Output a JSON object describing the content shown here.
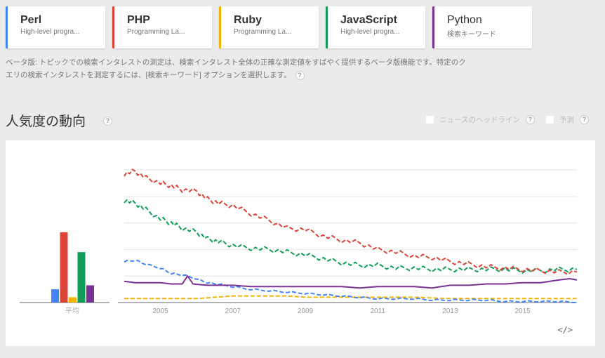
{
  "terms": [
    {
      "name": "Perl",
      "subtitle": "High-level progra...",
      "color": "#4285f4",
      "bold": true
    },
    {
      "name": "PHP",
      "subtitle": "Programming La...",
      "color": "#db4437",
      "bold": true
    },
    {
      "name": "Ruby",
      "subtitle": "Programming La...",
      "color": "#f4b400",
      "bold": true
    },
    {
      "name": "JavaScript",
      "subtitle": "High-level progra...",
      "color": "#0f9d58",
      "bold": true
    },
    {
      "name": "Python",
      "subtitle": "検索キーワード",
      "color": "#7b3294",
      "bold": false
    }
  ],
  "notice": {
    "line1": "ベータ版: トピックでの検索インタレストの測定は、検索インタレスト全体の正確な測定値をすばやく提供するベータ版機能です。特定のク",
    "line2": "エリの検索インタレストを測定するには、[検索キーワード] オプションを選択します。"
  },
  "section": {
    "title": "人気度の動向",
    "options": [
      {
        "label": "ニュースのヘッドライン",
        "checked": false
      },
      {
        "label": "予測",
        "checked": false
      }
    ]
  },
  "help_glyph": "?",
  "embed_label": "</>",
  "chart_data": {
    "type": "line",
    "title": "人気度の動向",
    "xlabel": "",
    "ylabel": "",
    "ylim": [
      0,
      100
    ],
    "grid": true,
    "x_ticks": [
      "2005",
      "2007",
      "2009",
      "2011",
      "2013",
      "2015"
    ],
    "x_range": [
      2004.0,
      2016.5
    ],
    "average_bar": {
      "label": "平均",
      "values": {
        "Perl": 10,
        "PHP": 53,
        "Ruby": 4,
        "JavaScript": 38,
        "Python": 13
      }
    },
    "series": [
      {
        "name": "Perl",
        "color": "#4285f4",
        "dashed": true,
        "x": [
          2004.0,
          2004.3,
          2004.6,
          2005.0,
          2005.3,
          2005.6,
          2006.0,
          2006.3,
          2006.6,
          2007.0,
          2007.5,
          2008.0,
          2008.5,
          2009.0,
          2009.5,
          2010.0,
          2010.5,
          2011.0,
          2011.5,
          2012.0,
          2012.5,
          2013.0,
          2013.5,
          2014.0,
          2014.5,
          2015.0,
          2015.5,
          2016.0,
          2016.5
        ],
        "values": [
          31,
          32,
          29,
          26,
          22,
          21,
          18,
          15,
          14,
          12,
          10,
          9,
          8,
          7,
          6,
          5,
          4,
          3,
          3,
          3,
          2,
          2,
          2,
          2,
          1,
          1,
          1,
          1,
          0
        ]
      },
      {
        "name": "PHP",
        "color": "#db4437",
        "dashed": true,
        "x": [
          2004.0,
          2004.3,
          2004.6,
          2005.0,
          2005.3,
          2005.6,
          2006.0,
          2006.3,
          2006.6,
          2007.0,
          2007.5,
          2008.0,
          2008.5,
          2009.0,
          2009.5,
          2010.0,
          2010.5,
          2011.0,
          2011.5,
          2012.0,
          2012.5,
          2013.0,
          2013.5,
          2014.0,
          2014.5,
          2015.0,
          2015.5,
          2016.0,
          2016.5
        ],
        "values": [
          97,
          99,
          94,
          90,
          88,
          85,
          84,
          78,
          75,
          73,
          67,
          62,
          56,
          55,
          50,
          47,
          45,
          40,
          38,
          35,
          34,
          31,
          29,
          27,
          26,
          25,
          24,
          23,
          23
        ]
      },
      {
        "name": "Ruby",
        "color": "#f4b400",
        "dashed": true,
        "x": [
          2004.0,
          2005.0,
          2006.0,
          2006.5,
          2007.0,
          2008.0,
          2008.5,
          2009.0,
          2010.0,
          2011.0,
          2012.0,
          2013.0,
          2014.0,
          2015.0,
          2016.0,
          2016.5
        ],
        "values": [
          3,
          3,
          3,
          4,
          5,
          5,
          5,
          4,
          4,
          4,
          4,
          3,
          3,
          3,
          3,
          3
        ]
      },
      {
        "name": "JavaScript",
        "color": "#0f9d58",
        "dashed": true,
        "x": [
          2004.0,
          2004.3,
          2004.6,
          2005.0,
          2005.3,
          2005.6,
          2006.0,
          2006.3,
          2006.6,
          2007.0,
          2007.5,
          2008.0,
          2008.5,
          2009.0,
          2009.5,
          2010.0,
          2010.5,
          2011.0,
          2011.5,
          2012.0,
          2012.5,
          2013.0,
          2013.5,
          2014.0,
          2014.5,
          2015.0,
          2015.5,
          2016.0,
          2016.5
        ],
        "values": [
          77,
          75,
          70,
          63,
          60,
          56,
          53,
          48,
          46,
          43,
          41,
          40,
          38,
          36,
          33,
          30,
          28,
          28,
          26,
          26,
          25,
          25,
          25,
          25,
          25,
          24,
          24,
          25,
          25
        ]
      },
      {
        "name": "Python",
        "color": "#7b3294",
        "dashed": false,
        "x": [
          2004.0,
          2004.3,
          2004.6,
          2005.0,
          2005.3,
          2005.6,
          2005.75,
          2005.9,
          2006.3,
          2006.6,
          2007.0,
          2007.5,
          2008.0,
          2008.5,
          2009.0,
          2009.5,
          2010.0,
          2010.5,
          2011.0,
          2011.5,
          2012.0,
          2012.5,
          2013.0,
          2013.5,
          2014.0,
          2014.5,
          2015.0,
          2015.5,
          2016.0,
          2016.3,
          2016.5
        ],
        "values": [
          16,
          15,
          15,
          15,
          14,
          14,
          20,
          14,
          13,
          13,
          13,
          12,
          12,
          12,
          12,
          12,
          12,
          11,
          12,
          12,
          12,
          11,
          13,
          13,
          14,
          14,
          15,
          15,
          17,
          18,
          17
        ]
      }
    ]
  }
}
